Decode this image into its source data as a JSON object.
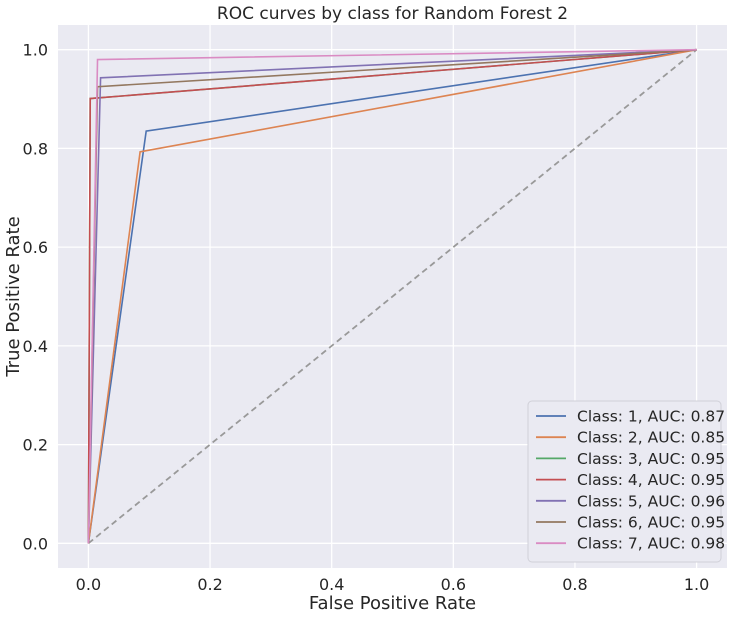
{
  "chart_data": {
    "type": "line",
    "title": "ROC curves by class for Random Forest 2",
    "xlabel": "False Positive Rate",
    "ylabel": "True Positive Rate",
    "xlim": [
      -0.05,
      1.05
    ],
    "ylim": [
      -0.05,
      1.05
    ],
    "xticks": [
      0.0,
      0.2,
      0.4,
      0.6,
      0.8,
      1.0
    ],
    "yticks": [
      0.0,
      0.2,
      0.4,
      0.6,
      0.8,
      1.0
    ],
    "xtick_labels": [
      "0.0",
      "0.2",
      "0.4",
      "0.6",
      "0.8",
      "1.0"
    ],
    "ytick_labels": [
      "0.0",
      "0.2",
      "0.4",
      "0.6",
      "0.8",
      "1.0"
    ],
    "grid": true,
    "legend_position": "bottom-right",
    "background": "#eaeaf2",
    "diagonal": {
      "x": [
        0,
        1
      ],
      "y": [
        0,
        1
      ],
      "color": "#999999",
      "style": "dashed"
    },
    "series": [
      {
        "name": "Class: 1, AUC: 0.87",
        "color": "#4c72b0",
        "x": [
          0,
          0.095,
          1
        ],
        "y": [
          0,
          0.835,
          1
        ]
      },
      {
        "name": "Class: 2, AUC: 0.85",
        "color": "#dd8452",
        "x": [
          0,
          0.085,
          1
        ],
        "y": [
          0,
          0.793,
          1
        ]
      },
      {
        "name": "Class: 3, AUC: 0.95",
        "color": "#55a868",
        "x": [
          0,
          0.003,
          1
        ],
        "y": [
          0,
          0.901,
          1
        ]
      },
      {
        "name": "Class: 4, AUC: 0.95",
        "color": "#c44e52",
        "x": [
          0,
          0.003,
          1
        ],
        "y": [
          0,
          0.901,
          1
        ]
      },
      {
        "name": "Class: 5, AUC: 0.96",
        "color": "#8172b3",
        "x": [
          0,
          0.02,
          1
        ],
        "y": [
          0,
          0.943,
          1
        ]
      },
      {
        "name": "Class: 6, AUC: 0.95",
        "color": "#937860",
        "x": [
          0,
          0.015,
          1
        ],
        "y": [
          0,
          0.925,
          1
        ]
      },
      {
        "name": "Class: 7, AUC: 0.98",
        "color": "#da8bc3",
        "x": [
          0,
          0.015,
          1
        ],
        "y": [
          0,
          0.98,
          1
        ]
      }
    ]
  }
}
